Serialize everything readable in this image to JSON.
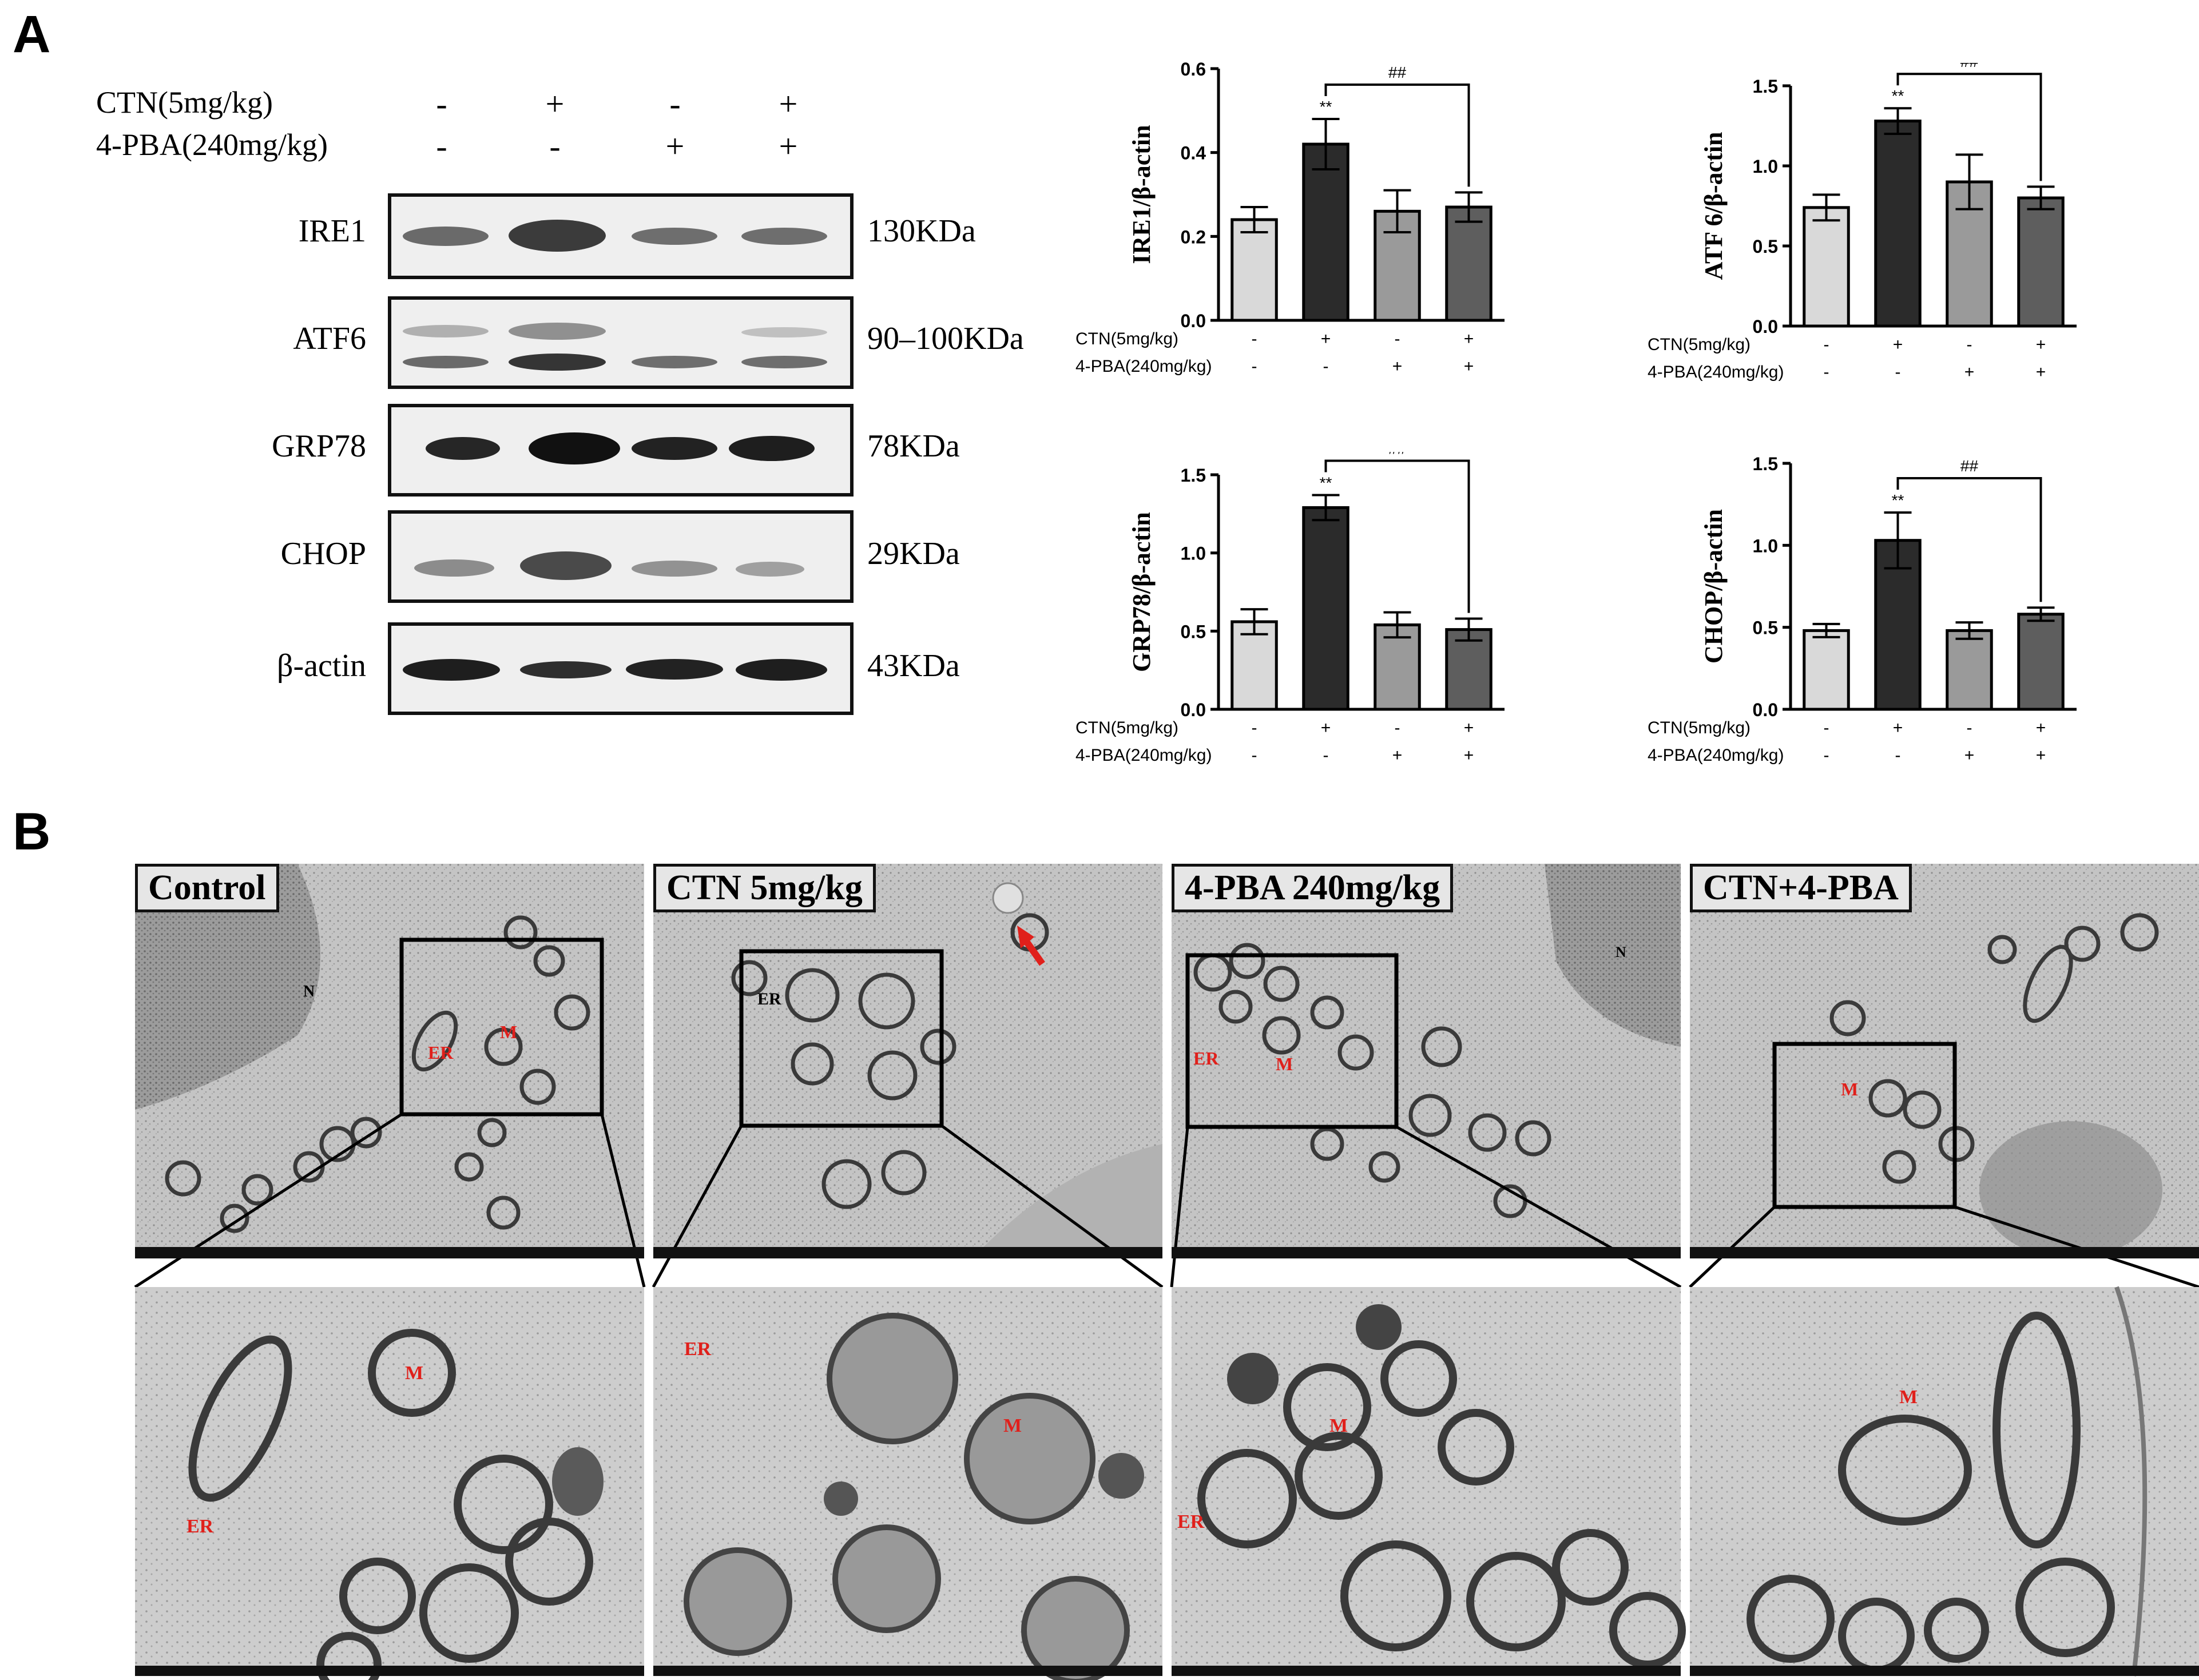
{
  "panel_a_letter": "A",
  "panel_b_letter": "B",
  "treatments": {
    "ctn_label": "CTN(5mg/kg)",
    "pba_label": "4-PBA(240mg/kg)",
    "ctn_signs": [
      "-",
      "+",
      "-",
      "+"
    ],
    "pba_signs": [
      "-",
      "-",
      "+",
      "+"
    ]
  },
  "blots": [
    {
      "name": "IRE1",
      "kda": "130KDa"
    },
    {
      "name": "ATF6",
      "kda": "90–100KDa"
    },
    {
      "name": "GRP78",
      "kda": "78KDa"
    },
    {
      "name": "CHOP",
      "kda": "29KDa"
    },
    {
      "name": "β-actin",
      "kda": "43KDa"
    }
  ],
  "tem_labels": [
    "Control",
    "CTN 5mg/kg",
    "4-PBA 240mg/kg",
    "CTN+4-PBA"
  ],
  "tem_annotations": {
    "er": "ER",
    "m": "M",
    "n": "N"
  },
  "colors": {
    "bar_fills": [
      "#d9d9d9",
      "#2b2b2b",
      "#9a9a9a",
      "#5e5e5e"
    ],
    "annotation_red": "#e0201b"
  },
  "chart_data": [
    {
      "type": "bar",
      "ylabel": "IRE1/β-actin",
      "ylim": [
        0,
        0.6
      ],
      "yticks": [
        "0.0",
        "0.2",
        "0.4",
        "0.6"
      ],
      "values": [
        0.24,
        0.42,
        0.26,
        0.27
      ],
      "errors": [
        0.03,
        0.06,
        0.05,
        0.035
      ],
      "sig_bar": "**",
      "sig_compare": "##",
      "x_row1_label": "CTN(5mg/kg)",
      "x_row2_label": "4-PBA(240mg/kg)",
      "x_row1": [
        "-",
        "+",
        "-",
        "+"
      ],
      "x_row2": [
        "-",
        "-",
        "+",
        "+"
      ]
    },
    {
      "type": "bar",
      "ylabel": "ATF 6/β-actin",
      "ylim": [
        0,
        1.5
      ],
      "yticks": [
        "0.0",
        "0.5",
        "1.0",
        "1.5"
      ],
      "values": [
        0.74,
        1.28,
        0.9,
        0.8
      ],
      "errors": [
        0.08,
        0.08,
        0.17,
        0.07
      ],
      "sig_bar": "**",
      "sig_compare": "##",
      "x_row1_label": "CTN(5mg/kg)",
      "x_row2_label": "4-PBA(240mg/kg)",
      "x_row1": [
        "-",
        "+",
        "-",
        "+"
      ],
      "x_row2": [
        "-",
        "-",
        "+",
        "+"
      ]
    },
    {
      "type": "bar",
      "ylabel": "GRP78/β-actin",
      "ylim": [
        0,
        1.5
      ],
      "yticks": [
        "0.0",
        "0.5",
        "1.0",
        "1.5"
      ],
      "values": [
        0.56,
        1.29,
        0.54,
        0.51
      ],
      "errors": [
        0.08,
        0.08,
        0.08,
        0.07
      ],
      "sig_bar": "**",
      "sig_compare": "##",
      "x_row1_label": "CTN(5mg/kg)",
      "x_row2_label": "4-PBA(240mg/kg)",
      "x_row1": [
        "-",
        "+",
        "-",
        "+"
      ],
      "x_row2": [
        "-",
        "-",
        "+",
        "+"
      ]
    },
    {
      "type": "bar",
      "ylabel": "CHOP/β-actin",
      "ylim": [
        0,
        1.5
      ],
      "yticks": [
        "0.0",
        "0.5",
        "1.0",
        "1.5"
      ],
      "values": [
        0.48,
        1.03,
        0.48,
        0.58
      ],
      "errors": [
        0.04,
        0.17,
        0.05,
        0.04
      ],
      "sig_bar": "**",
      "sig_compare": "##",
      "x_row1_label": "CTN(5mg/kg)",
      "x_row2_label": "4-PBA(240mg/kg)",
      "x_row1": [
        "-",
        "+",
        "-",
        "+"
      ],
      "x_row2": [
        "-",
        "-",
        "+",
        "+"
      ]
    }
  ]
}
